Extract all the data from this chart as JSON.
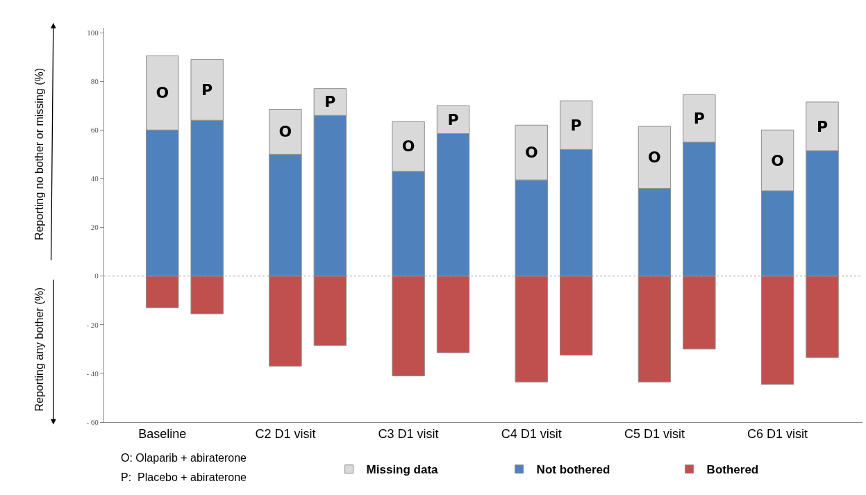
{
  "chart_data": {
    "type": "bar",
    "stacked": true,
    "ylabel": "Reporting no bother or missing (%)",
    "categories": [
      "Baseline",
      null,
      "C2 D1 visit",
      null,
      "C3 D1 visit",
      null,
      "C4 D1 visit",
      null,
      "C5 D1 visit",
      null,
      "C6 D1 visit",
      null
    ],
    "series": [
      {
        "name": "Bothered",
        "color": "#c0504d",
        "values": [
          -13,
          -15.5,
          -37,
          -28.5,
          -41,
          -31.5,
          -43.5,
          -32.5,
          -43.5,
          -30,
          -44.5,
          -33.5
        ]
      },
      {
        "name": "Not bothered",
        "color": "#4f81bd",
        "values": [
          60,
          64,
          50,
          66,
          43,
          58.5,
          39.5,
          52,
          36,
          55,
          35,
          51.5
        ]
      },
      {
        "name": "Missing data",
        "color": "#d9d9d9",
        "values": [
          30.5,
          25,
          18.5,
          11,
          20.5,
          11.5,
          22.5,
          20,
          25.5,
          19.5,
          25,
          20
        ],
        "value_labels": [
          "O",
          "P",
          "O",
          "P",
          "O",
          "P",
          "O",
          "P",
          "O",
          "P",
          "O",
          "P"
        ]
      }
    ],
    "ylim": [
      -60,
      102
    ],
    "yticks": [
      {
        "value": -60,
        "label": "- 60"
      },
      {
        "value": -40,
        "label": "- 40"
      },
      {
        "value": -20,
        "label": "- 20"
      },
      0,
      20,
      40,
      60,
      80,
      100
    ],
    "ref_lines": [
      {
        "axis": "y",
        "value": 0,
        "color": "#999999",
        "line_style": "dotted"
      }
    ],
    "grid": false,
    "legend": "bottom",
    "annotations": [
      "Reporting any bother (%)",
      "O: Olaparib + abiraterone",
      "P:  Placebo + abiraterone"
    ]
  }
}
